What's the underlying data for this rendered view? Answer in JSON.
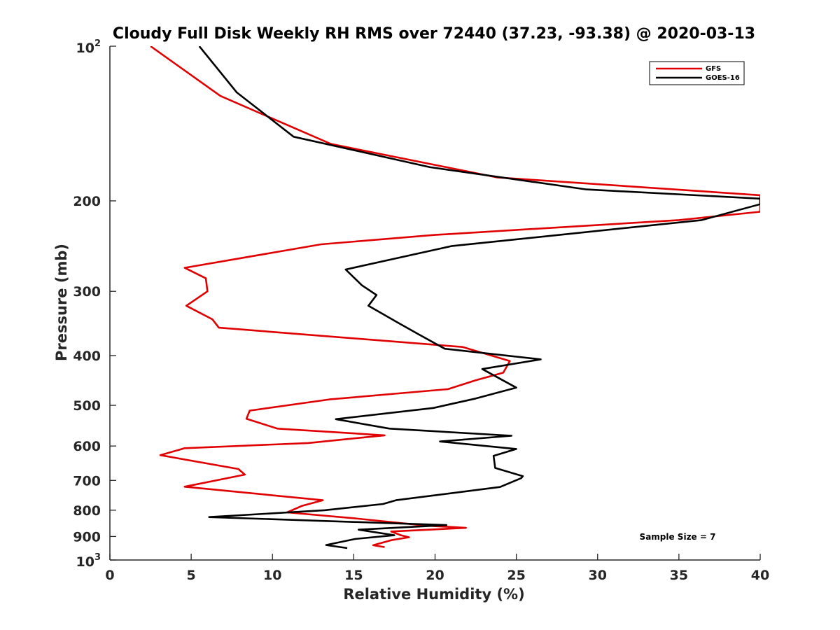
{
  "chart_data": {
    "type": "line",
    "title": "Cloudy Full Disk Weekly RH RMS over 72440 (37.23, -93.38) @ 2020-03-13",
    "xlabel": "Relative Humidity (%)",
    "ylabel": "Pressure (mb)",
    "xlim": [
      0,
      40
    ],
    "ylim": [
      100,
      1000
    ],
    "yscale": "log",
    "y_reversed": true,
    "x_ticks": [
      0,
      5,
      10,
      15,
      20,
      25,
      30,
      35,
      40
    ],
    "x_tick_labels": [
      "0",
      "5",
      "10",
      "15",
      "20",
      "25",
      "30",
      "35",
      "40"
    ],
    "y_ticks": [
      200,
      300,
      400,
      500,
      600,
      700,
      800,
      900
    ],
    "y_tick_labels": [
      "200",
      "300",
      "400",
      "500",
      "600",
      "700",
      "800",
      "900"
    ],
    "y_end_labels": [
      {
        "value": 100,
        "base": "10",
        "exp": "2"
      },
      {
        "value": 1000,
        "base": "10",
        "exp": "3"
      }
    ],
    "legend_position": "top-right",
    "annotation": "Sample Size = 7",
    "series": [
      {
        "name": "GFS",
        "color": "#e00000",
        "points": [
          [
            2.5,
            100
          ],
          [
            6.8,
            125
          ],
          [
            13.6,
            155
          ],
          [
            23.8,
            180
          ],
          [
            40,
            195
          ],
          [
            40,
            210
          ],
          [
            35,
            218
          ],
          [
            20,
            233
          ],
          [
            13,
            243
          ],
          [
            4.6,
            270
          ],
          [
            5.9,
            283
          ],
          [
            6.0,
            300
          ],
          [
            4.7,
            320
          ],
          [
            6.3,
            340
          ],
          [
            6.7,
            353
          ],
          [
            21.7,
            385
          ],
          [
            24.6,
            410
          ],
          [
            24.2,
            432
          ],
          [
            22.5,
            447
          ],
          [
            20.8,
            465
          ],
          [
            13.5,
            487
          ],
          [
            8.6,
            512
          ],
          [
            8.4,
            531
          ],
          [
            10.3,
            555
          ],
          [
            16.9,
            572
          ],
          [
            12.2,
            592
          ],
          [
            4.6,
            606
          ],
          [
            3.1,
            625
          ],
          [
            7.9,
            665
          ],
          [
            8.3,
            682
          ],
          [
            7.1,
            694
          ],
          [
            4.6,
            720
          ],
          [
            13.1,
            765
          ],
          [
            11.8,
            785
          ],
          [
            10.9,
            808
          ],
          [
            15.1,
            830
          ],
          [
            19.4,
            857
          ],
          [
            21.9,
            866
          ],
          [
            17.3,
            880
          ],
          [
            17.9,
            895
          ],
          [
            18.4,
            903
          ],
          [
            17.3,
            915
          ],
          [
            16.2,
            936
          ],
          [
            16.9,
            944
          ]
        ]
      },
      {
        "name": "GOES-16",
        "color": "#000000",
        "points": [
          [
            5.5,
            100
          ],
          [
            7.8,
            123
          ],
          [
            11.3,
            150
          ],
          [
            19.7,
            172
          ],
          [
            29.3,
            190
          ],
          [
            40,
            198
          ],
          [
            40,
            203
          ],
          [
            36.4,
            218
          ],
          [
            21.0,
            245
          ],
          [
            14.5,
            272
          ],
          [
            15.5,
            292
          ],
          [
            16.4,
            305
          ],
          [
            15.9,
            320
          ],
          [
            17.7,
            345
          ],
          [
            19.0,
            364
          ],
          [
            20.6,
            388
          ],
          [
            26.5,
            407
          ],
          [
            22.9,
            425
          ],
          [
            25.0,
            462
          ],
          [
            22.5,
            485
          ],
          [
            19.9,
            506
          ],
          [
            13.9,
            532
          ],
          [
            17.2,
            555
          ],
          [
            24.7,
            573
          ],
          [
            20.3,
            588
          ],
          [
            25.0,
            608
          ],
          [
            23.6,
            627
          ],
          [
            23.7,
            662
          ],
          [
            25.4,
            687
          ],
          [
            25.3,
            693
          ],
          [
            24.0,
            721
          ],
          [
            17.6,
            765
          ],
          [
            16.8,
            778
          ],
          [
            13.2,
            800
          ],
          [
            6.1,
            825
          ],
          [
            20.7,
            855
          ],
          [
            15.3,
            873
          ],
          [
            17.5,
            895
          ],
          [
            15.1,
            910
          ],
          [
            13.3,
            935
          ],
          [
            14.6,
            948
          ]
        ]
      }
    ]
  }
}
